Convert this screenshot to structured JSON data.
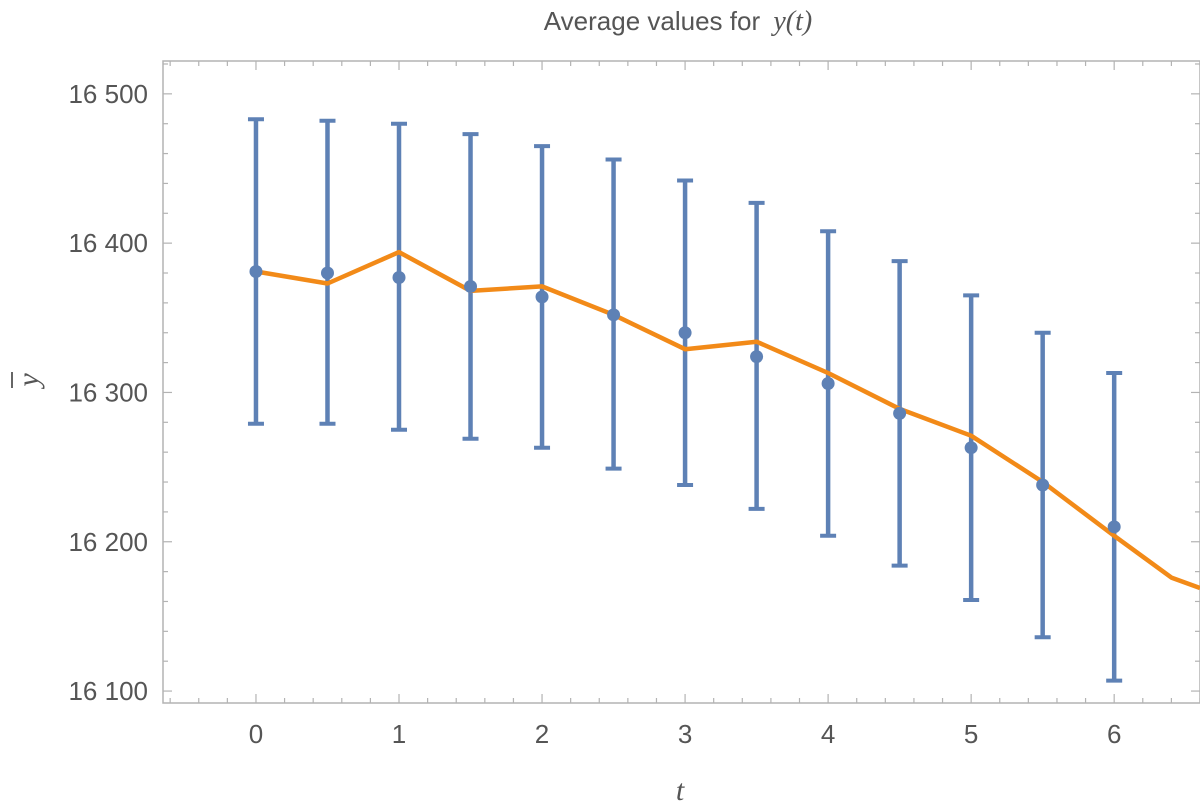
{
  "chart_data": {
    "type": "scatter",
    "title": "Average values for",
    "title_variable": "y(t)",
    "xlabel": "t",
    "ylabel": "y",
    "xlim": [
      -0.65,
      6.6
    ],
    "ylim": [
      16092,
      16522
    ],
    "x_ticks": [
      0,
      1,
      2,
      3,
      4,
      5,
      6
    ],
    "y_ticks": [
      16100,
      16200,
      16300,
      16400,
      16500
    ],
    "y_tick_labels": [
      "16 100",
      "16 200",
      "16 300",
      "16 400",
      "16 500"
    ],
    "frame": "box",
    "grid": false,
    "series": [
      {
        "kind": "errorbar",
        "color": "#5e81b5",
        "x": [
          0,
          0.5,
          1,
          1.5,
          2,
          2.5,
          3,
          3.5,
          4,
          4.5,
          5,
          5.5,
          6
        ],
        "y": [
          16381,
          16380,
          16377,
          16371,
          16364,
          16352,
          16340,
          16324,
          16306,
          16286,
          16263,
          16238,
          16210
        ],
        "y_low": [
          16279,
          16279,
          16275,
          16269,
          16263,
          16249,
          16238,
          16222,
          16204,
          16184,
          16161,
          16136,
          16107
        ],
        "y_high": [
          16483,
          16482,
          16480,
          16473,
          16465,
          16456,
          16442,
          16427,
          16408,
          16388,
          16365,
          16340,
          16313
        ]
      },
      {
        "kind": "line",
        "color": "#f28a18",
        "x": [
          0,
          0.5,
          1,
          1.5,
          2,
          2.5,
          3,
          3.5,
          4,
          4.5,
          5,
          5.5,
          6,
          6.4,
          6.6
        ],
        "y": [
          16381,
          16373,
          16394,
          16368,
          16371,
          16352,
          16329,
          16334,
          16313,
          16289,
          16271,
          16240,
          16204,
          16176,
          16169
        ]
      }
    ]
  }
}
